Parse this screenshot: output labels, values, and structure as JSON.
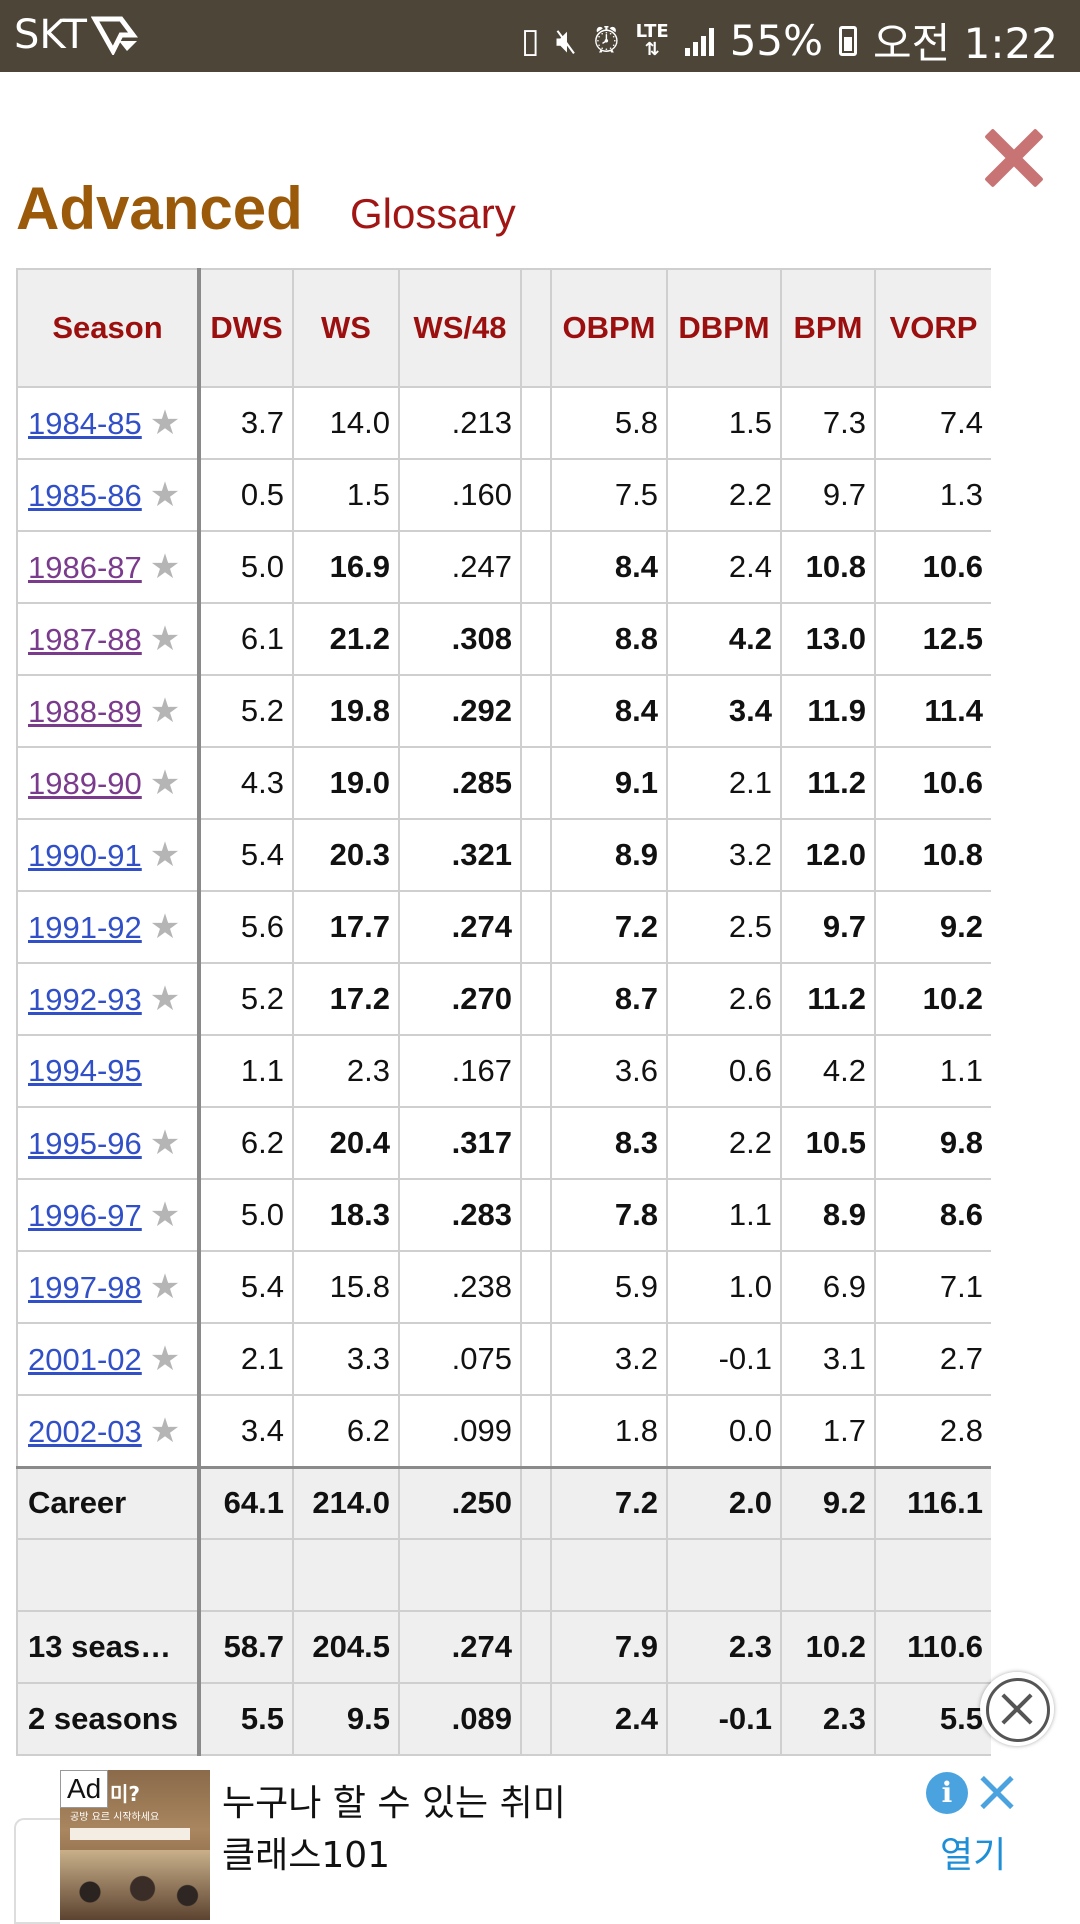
{
  "status_bar": {
    "carrier": "SKT",
    "network": "LTE",
    "battery": "55%",
    "time": "오전 1:22",
    "icons": [
      "carrier-logo-icon",
      "sd-card-icon",
      "mute-icon",
      "alarm-icon",
      "lte-icon",
      "signal-icon",
      "battery-icon"
    ]
  },
  "header": {
    "title": "Advanced",
    "glossary_link": "Glossary",
    "close_icon": "close-icon"
  },
  "table": {
    "columns": [
      "Season",
      "DWS",
      "WS",
      "WS/48",
      "",
      "OBPM",
      "DBPM",
      "BPM",
      "VORP"
    ],
    "rows": [
      {
        "season": "1984-85",
        "star": true,
        "visited": false,
        "dws": "3.7",
        "ws": "14.0",
        "ws48": ".213",
        "obpm": "5.8",
        "dbpm": "1.5",
        "bpm": "7.3",
        "vorp": "7.4",
        "bold": []
      },
      {
        "season": "1985-86",
        "star": true,
        "visited": false,
        "dws": "0.5",
        "ws": "1.5",
        "ws48": ".160",
        "obpm": "7.5",
        "dbpm": "2.2",
        "bpm": "9.7",
        "vorp": "1.3",
        "bold": []
      },
      {
        "season": "1986-87",
        "star": true,
        "visited": true,
        "dws": "5.0",
        "ws": "16.9",
        "ws48": ".247",
        "obpm": "8.4",
        "dbpm": "2.4",
        "bpm": "10.8",
        "vorp": "10.6",
        "bold": [
          "ws",
          "obpm",
          "bpm",
          "vorp"
        ]
      },
      {
        "season": "1987-88",
        "star": true,
        "visited": true,
        "dws": "6.1",
        "ws": "21.2",
        "ws48": ".308",
        "obpm": "8.8",
        "dbpm": "4.2",
        "bpm": "13.0",
        "vorp": "12.5",
        "bold": [
          "ws",
          "ws48",
          "obpm",
          "dbpm",
          "bpm",
          "vorp"
        ]
      },
      {
        "season": "1988-89",
        "star": true,
        "visited": true,
        "dws": "5.2",
        "ws": "19.8",
        "ws48": ".292",
        "obpm": "8.4",
        "dbpm": "3.4",
        "bpm": "11.9",
        "vorp": "11.4",
        "bold": [
          "ws",
          "ws48",
          "obpm",
          "dbpm",
          "bpm",
          "vorp"
        ]
      },
      {
        "season": "1989-90",
        "star": true,
        "visited": true,
        "dws": "4.3",
        "ws": "19.0",
        "ws48": ".285",
        "obpm": "9.1",
        "dbpm": "2.1",
        "bpm": "11.2",
        "vorp": "10.6",
        "bold": [
          "ws",
          "ws48",
          "obpm",
          "bpm",
          "vorp"
        ]
      },
      {
        "season": "1990-91",
        "star": true,
        "visited": false,
        "dws": "5.4",
        "ws": "20.3",
        "ws48": ".321",
        "obpm": "8.9",
        "dbpm": "3.2",
        "bpm": "12.0",
        "vorp": "10.8",
        "bold": [
          "ws",
          "ws48",
          "obpm",
          "bpm",
          "vorp"
        ]
      },
      {
        "season": "1991-92",
        "star": true,
        "visited": false,
        "dws": "5.6",
        "ws": "17.7",
        "ws48": ".274",
        "obpm": "7.2",
        "dbpm": "2.5",
        "bpm": "9.7",
        "vorp": "9.2",
        "bold": [
          "ws",
          "ws48",
          "obpm",
          "bpm",
          "vorp"
        ]
      },
      {
        "season": "1992-93",
        "star": true,
        "visited": false,
        "dws": "5.2",
        "ws": "17.2",
        "ws48": ".270",
        "obpm": "8.7",
        "dbpm": "2.6",
        "bpm": "11.2",
        "vorp": "10.2",
        "bold": [
          "ws",
          "ws48",
          "obpm",
          "bpm",
          "vorp"
        ]
      },
      {
        "season": "1994-95",
        "star": false,
        "visited": false,
        "dws": "1.1",
        "ws": "2.3",
        "ws48": ".167",
        "obpm": "3.6",
        "dbpm": "0.6",
        "bpm": "4.2",
        "vorp": "1.1",
        "bold": []
      },
      {
        "season": "1995-96",
        "star": true,
        "visited": false,
        "dws": "6.2",
        "ws": "20.4",
        "ws48": ".317",
        "obpm": "8.3",
        "dbpm": "2.2",
        "bpm": "10.5",
        "vorp": "9.8",
        "bold": [
          "ws",
          "ws48",
          "obpm",
          "bpm",
          "vorp"
        ]
      },
      {
        "season": "1996-97",
        "star": true,
        "visited": false,
        "dws": "5.0",
        "ws": "18.3",
        "ws48": ".283",
        "obpm": "7.8",
        "dbpm": "1.1",
        "bpm": "8.9",
        "vorp": "8.6",
        "bold": [
          "ws",
          "ws48",
          "obpm",
          "bpm",
          "vorp"
        ]
      },
      {
        "season": "1997-98",
        "star": true,
        "visited": false,
        "dws": "5.4",
        "ws": "15.8",
        "ws48": ".238",
        "obpm": "5.9",
        "dbpm": "1.0",
        "bpm": "6.9",
        "vorp": "7.1",
        "bold": []
      },
      {
        "season": "2001-02",
        "star": true,
        "visited": false,
        "dws": "2.1",
        "ws": "3.3",
        "ws48": ".075",
        "obpm": "3.2",
        "dbpm": "-0.1",
        "bpm": "3.1",
        "vorp": "2.7",
        "bold": []
      },
      {
        "season": "2002-03",
        "star": true,
        "visited": false,
        "dws": "3.4",
        "ws": "6.2",
        "ws48": ".099",
        "obpm": "1.8",
        "dbpm": "0.0",
        "bpm": "1.7",
        "vorp": "2.8",
        "bold": []
      }
    ],
    "career": {
      "label": "Career",
      "dws": "64.1",
      "ws": "214.0",
      "ws48": ".250",
      "obpm": "7.2",
      "dbpm": "2.0",
      "bpm": "9.2",
      "vorp": "116.1"
    },
    "summaries": [
      {
        "label": "13 seaso…",
        "dws": "58.7",
        "ws": "204.5",
        "ws48": ".274",
        "obpm": "7.9",
        "dbpm": "2.3",
        "bpm": "10.2",
        "vorp": "110.6"
      },
      {
        "label": "2 seasons",
        "dws": "5.5",
        "ws": "9.5",
        "ws48": ".089",
        "obpm": "2.4",
        "dbpm": "-0.1",
        "bpm": "2.3",
        "vorp": "5.5"
      }
    ]
  },
  "ad": {
    "badge": "Ad",
    "image_text": "미?",
    "image_subtext": "공방 요르 시작하세요",
    "line1": "누구나 할 수 있는 취미",
    "line2": "클래스101",
    "open_label": "열기",
    "info_glyph": "i"
  }
}
